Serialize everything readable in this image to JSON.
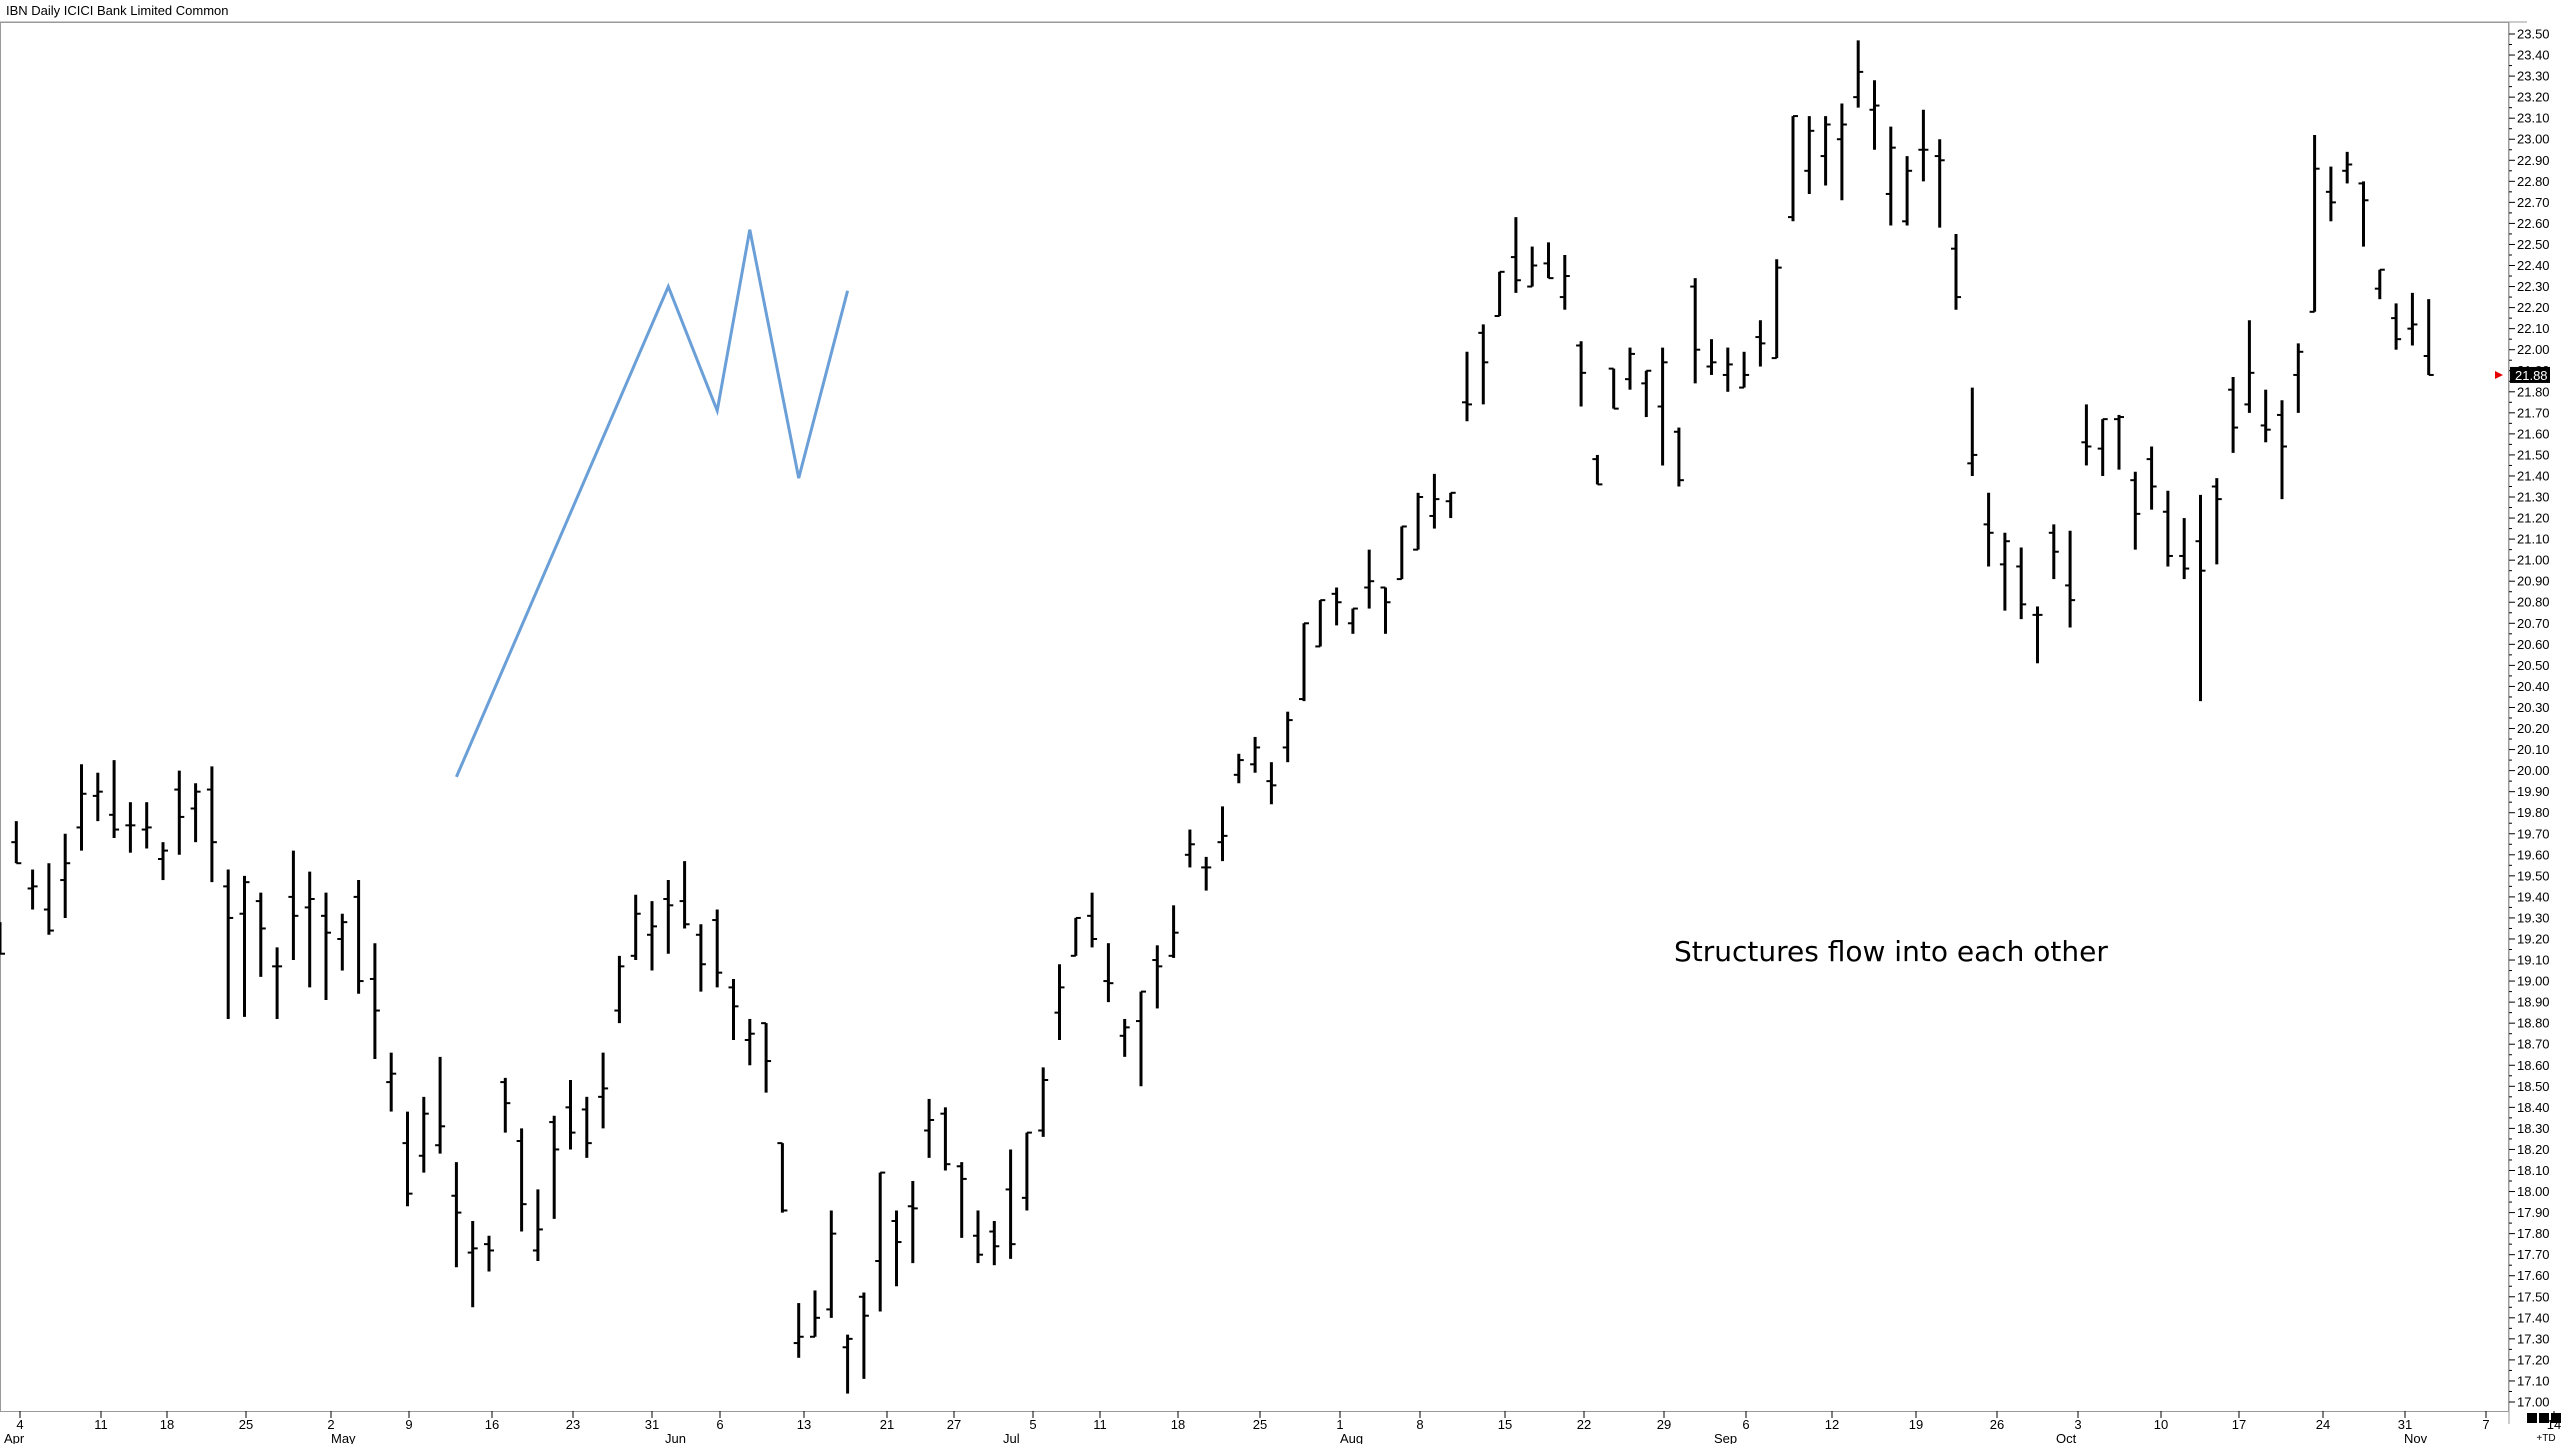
{
  "chart_data": {
    "type": "ohlc",
    "title": "IBN Daily ICICI Bank Limited Common",
    "annotation": "Structures flow into each other",
    "last_price": "21.88",
    "y_axis": {
      "min": 17.0,
      "max": 23.5,
      "step": 0.1,
      "labels": [
        "23.50",
        "23.40",
        "23.30",
        "23.20",
        "23.10",
        "23.00",
        "22.90",
        "22.80",
        "22.70",
        "22.60",
        "22.50",
        "22.40",
        "22.30",
        "22.20",
        "22.10",
        "22.00",
        "21.90",
        "21.80",
        "21.70",
        "21.60",
        "21.50",
        "21.40",
        "21.30",
        "21.20",
        "21.10",
        "21.00",
        "20.90",
        "20.80",
        "20.70",
        "20.60",
        "20.50",
        "20.40",
        "20.30",
        "20.20",
        "20.10",
        "20.00",
        "19.90",
        "19.80",
        "19.70",
        "19.60",
        "19.50",
        "19.40",
        "19.30",
        "19.20",
        "19.10",
        "19.00",
        "18.90",
        "18.80",
        "18.70",
        "18.60",
        "18.50",
        "18.40",
        "18.30",
        "18.20",
        "18.10",
        "18.00",
        "17.90",
        "17.80",
        "17.70",
        "17.60",
        "17.50",
        "17.40",
        "17.30",
        "17.20",
        "17.10",
        "17.00"
      ]
    },
    "x_axis": {
      "day_ticks": [
        "4",
        "11",
        "18",
        "25",
        "2",
        "9",
        "16",
        "23",
        "31",
        "6",
        "13",
        "21",
        "27",
        "5",
        "11",
        "18",
        "25",
        "1",
        "8",
        "15",
        "22",
        "29",
        "6",
        "12",
        "19",
        "26",
        "3",
        "10",
        "17",
        "24",
        "31",
        "7",
        "14"
      ],
      "months": [
        "Apr",
        "May",
        "Jun",
        "Jul",
        "Aug",
        "Sep",
        "Oct",
        "Nov"
      ],
      "corner_label": "+TD"
    },
    "bars": [
      [
        19.28,
        19.28,
        19.13,
        19.13
      ],
      [
        19.66,
        19.76,
        19.56,
        19.56
      ],
      [
        19.44,
        19.53,
        19.34,
        19.45
      ],
      [
        19.34,
        19.56,
        19.22,
        19.24
      ],
      [
        19.48,
        19.7,
        19.3,
        19.56
      ],
      [
        19.73,
        20.03,
        19.62,
        19.89
      ],
      [
        19.88,
        19.99,
        19.76,
        19.9
      ],
      [
        19.79,
        20.05,
        19.68,
        19.72
      ],
      [
        19.74,
        19.85,
        19.61,
        19.74
      ],
      [
        19.72,
        19.85,
        19.63,
        19.73
      ],
      [
        19.58,
        19.66,
        19.48,
        19.62
      ],
      [
        19.91,
        20.0,
        19.6,
        19.78
      ],
      [
        19.82,
        19.94,
        19.66,
        19.9
      ],
      [
        19.91,
        20.02,
        19.47,
        19.66
      ],
      [
        19.45,
        19.53,
        18.82,
        19.3
      ],
      [
        19.32,
        19.5,
        18.83,
        19.47
      ],
      [
        19.38,
        19.42,
        19.02,
        19.25
      ],
      [
        19.07,
        19.16,
        18.82,
        19.07
      ],
      [
        19.4,
        19.62,
        19.1,
        19.31
      ],
      [
        19.35,
        19.52,
        18.97,
        19.39
      ],
      [
        19.31,
        19.42,
        18.91,
        19.23
      ],
      [
        19.2,
        19.32,
        19.05,
        19.28
      ],
      [
        19.4,
        19.48,
        18.94,
        19.0
      ],
      [
        19.01,
        19.18,
        18.63,
        18.86
      ],
      [
        18.52,
        18.66,
        18.38,
        18.56
      ],
      [
        18.23,
        18.38,
        17.93,
        17.99
      ],
      [
        18.17,
        18.45,
        18.09,
        18.37
      ],
      [
        18.22,
        18.64,
        18.18,
        18.31
      ],
      [
        17.98,
        18.14,
        17.64,
        17.9
      ],
      [
        17.71,
        17.86,
        17.45,
        17.73
      ],
      [
        17.75,
        17.79,
        17.62,
        17.72
      ],
      [
        18.52,
        18.54,
        18.28,
        18.42
      ],
      [
        18.24,
        18.3,
        17.81,
        17.94
      ],
      [
        17.72,
        18.01,
        17.67,
        17.82
      ],
      [
        18.33,
        18.36,
        17.87,
        18.2
      ],
      [
        18.4,
        18.53,
        18.2,
        18.28
      ],
      [
        18.39,
        18.45,
        18.16,
        18.23
      ],
      [
        18.45,
        18.66,
        18.3,
        18.49
      ],
      [
        18.86,
        19.12,
        18.8,
        19.07
      ],
      [
        19.12,
        19.41,
        19.1,
        19.32
      ],
      [
        19.22,
        19.38,
        19.05,
        19.26
      ],
      [
        19.39,
        19.48,
        19.13,
        19.36
      ],
      [
        19.38,
        19.57,
        19.25,
        19.27
      ],
      [
        19.22,
        19.27,
        18.95,
        19.08
      ],
      [
        19.29,
        19.34,
        18.97,
        19.04
      ],
      [
        18.97,
        19.01,
        18.72,
        18.88
      ],
      [
        18.72,
        18.82,
        18.6,
        18.75
      ],
      [
        18.8,
        18.75,
        18.47,
        18.62
      ],
      [
        18.23,
        18.22,
        17.9,
        17.91
      ],
      [
        17.28,
        17.47,
        17.21,
        17.31
      ],
      [
        17.31,
        17.53,
        17.33,
        17.4
      ],
      [
        17.44,
        17.91,
        17.4,
        17.8
      ],
      [
        17.26,
        17.32,
        17.04,
        17.3
      ],
      [
        17.5,
        17.52,
        17.11,
        17.41
      ],
      [
        17.67,
        17.83,
        17.43,
        18.09
      ],
      [
        17.86,
        17.91,
        17.55,
        17.76
      ],
      [
        17.93,
        18.05,
        17.66,
        17.92
      ],
      [
        18.29,
        18.44,
        18.16,
        18.34
      ],
      [
        18.37,
        18.4,
        18.1,
        18.13
      ],
      [
        18.12,
        18.14,
        17.78,
        18.06
      ],
      [
        17.79,
        17.91,
        17.66,
        17.7
      ],
      [
        17.81,
        17.86,
        17.65,
        17.74
      ],
      [
        18.01,
        18.2,
        17.68,
        17.75
      ],
      [
        17.97,
        18.25,
        17.91,
        18.28
      ],
      [
        18.29,
        18.59,
        18.26,
        18.53
      ],
      [
        18.85,
        19.08,
        18.72,
        18.97
      ],
      [
        19.12,
        19.29,
        19.14,
        19.3
      ],
      [
        19.31,
        19.42,
        19.16,
        19.2
      ],
      [
        19.0,
        19.18,
        18.9,
        18.99
      ],
      [
        18.74,
        18.82,
        18.64,
        18.78
      ],
      [
        18.81,
        18.95,
        18.5,
        18.95
      ],
      [
        19.1,
        19.17,
        18.87,
        19.07
      ],
      [
        19.12,
        19.36,
        19.11,
        19.23
      ],
      [
        19.6,
        19.72,
        19.54,
        19.65
      ],
      [
        19.54,
        19.59,
        19.43,
        19.54
      ],
      [
        19.66,
        19.83,
        19.57,
        19.69
      ],
      [
        19.98,
        20.08,
        19.94,
        20.05
      ],
      [
        20.03,
        20.16,
        19.99,
        20.11
      ],
      [
        19.95,
        20.04,
        19.84,
        19.93
      ],
      [
        20.11,
        20.28,
        20.04,
        20.24
      ],
      [
        20.34,
        20.7,
        20.33,
        20.7
      ],
      [
        20.59,
        20.8,
        20.62,
        20.81
      ],
      [
        20.84,
        20.87,
        20.69,
        20.8
      ],
      [
        20.7,
        20.77,
        20.65,
        20.77
      ],
      [
        20.87,
        21.05,
        20.77,
        20.9
      ],
      [
        20.87,
        20.84,
        20.65,
        20.8
      ],
      [
        20.91,
        21.07,
        20.99,
        21.16
      ],
      [
        21.05,
        21.32,
        21.17,
        21.3
      ],
      [
        21.21,
        21.41,
        21.15,
        21.29
      ],
      [
        21.28,
        21.3,
        21.2,
        21.32
      ],
      [
        21.75,
        21.99,
        21.66,
        21.74
      ],
      [
        22.08,
        22.12,
        21.74,
        21.94
      ],
      [
        22.16,
        22.36,
        22.17,
        22.37
      ],
      [
        22.44,
        22.63,
        22.27,
        22.33
      ],
      [
        22.3,
        22.49,
        22.31,
        22.4
      ],
      [
        22.41,
        22.51,
        22.38,
        22.34
      ],
      [
        22.25,
        22.45,
        22.19,
        22.35
      ],
      [
        22.02,
        22.04,
        21.73,
        21.89
      ],
      [
        21.48,
        21.5,
        21.36,
        21.36
      ],
      [
        21.91,
        21.91,
        21.73,
        21.72
      ],
      [
        21.86,
        22.01,
        21.81,
        21.98
      ],
      [
        21.84,
        21.83,
        21.68,
        21.9
      ],
      [
        21.73,
        22.01,
        21.45,
        21.94
      ],
      [
        21.61,
        21.63,
        21.35,
        21.38
      ],
      [
        22.3,
        22.34,
        21.84,
        22.0
      ],
      [
        21.92,
        22.05,
        21.88,
        21.94
      ],
      [
        21.88,
        22.01,
        21.8,
        21.93
      ],
      [
        21.82,
        21.99,
        21.84,
        21.88
      ],
      [
        22.06,
        22.14,
        21.92,
        22.03
      ],
      [
        21.96,
        22.43,
        21.96,
        22.39
      ],
      [
        22.63,
        22.94,
        22.61,
        23.11
      ],
      [
        22.85,
        23.11,
        22.74,
        23.04
      ],
      [
        22.92,
        23.11,
        22.78,
        23.07
      ],
      [
        23.0,
        23.17,
        22.71,
        23.07
      ],
      [
        23.2,
        23.47,
        23.15,
        23.32
      ],
      [
        23.14,
        23.28,
        22.95,
        23.16
      ],
      [
        22.74,
        23.06,
        22.59,
        22.96
      ],
      [
        22.61,
        22.92,
        22.59,
        22.85
      ],
      [
        22.95,
        23.14,
        22.8,
        22.95
      ],
      [
        22.92,
        23.0,
        22.58,
        22.9
      ],
      [
        22.48,
        22.55,
        22.19,
        22.25
      ],
      [
        21.46,
        21.82,
        21.4,
        21.5
      ],
      [
        21.17,
        21.32,
        20.97,
        21.13
      ],
      [
        20.98,
        21.13,
        20.76,
        21.09
      ],
      [
        20.97,
        21.06,
        20.72,
        20.79
      ],
      [
        20.74,
        20.78,
        20.51,
        20.74
      ],
      [
        21.13,
        21.17,
        20.91,
        21.04
      ],
      [
        20.88,
        21.14,
        20.68,
        20.81
      ],
      [
        21.56,
        21.74,
        21.45,
        21.54
      ],
      [
        21.53,
        21.6,
        21.4,
        21.67
      ],
      [
        21.67,
        21.69,
        21.43,
        21.68
      ],
      [
        21.38,
        21.42,
        21.05,
        21.22
      ],
      [
        21.48,
        21.54,
        21.24,
        21.35
      ],
      [
        21.23,
        21.33,
        20.97,
        21.02
      ],
      [
        21.02,
        21.2,
        20.91,
        20.96
      ],
      [
        21.09,
        21.31,
        20.33,
        20.95
      ],
      [
        21.35,
        21.39,
        20.98,
        21.29
      ],
      [
        21.81,
        21.87,
        21.51,
        21.63
      ],
      [
        21.74,
        22.14,
        21.7,
        21.89
      ],
      [
        21.64,
        21.81,
        21.56,
        21.62
      ],
      [
        21.69,
        21.76,
        21.29,
        21.54
      ],
      [
        21.88,
        22.03,
        21.7,
        21.99
      ],
      [
        22.18,
        23.02,
        22.18,
        22.86
      ],
      [
        22.75,
        22.87,
        22.61,
        22.7
      ],
      [
        22.85,
        22.94,
        22.79,
        22.88
      ],
      [
        22.79,
        22.8,
        22.49,
        22.71
      ],
      [
        22.29,
        22.37,
        22.24,
        22.38
      ],
      [
        22.15,
        22.22,
        22.0,
        22.05
      ],
      [
        22.1,
        22.27,
        22.02,
        22.12
      ],
      [
        21.97,
        22.24,
        21.89,
        21.88
      ]
    ],
    "overlay_line": [
      {
        "date": "2016-05-11",
        "price": 19.97
      },
      {
        "date": "2016-05-30",
        "price": 22.3
      },
      {
        "date": "2016-06-02",
        "price": 21.71
      },
      {
        "date": "2016-06-06",
        "price": 22.57
      },
      {
        "date": "2016-06-09",
        "price": 21.39
      },
      {
        "date": "2016-06-14",
        "price": 22.28
      }
    ],
    "colors": {
      "bar": "#000000",
      "overlay": "#6a9fd7",
      "price_marker": "#e60000",
      "last_price_box": "#000000"
    },
    "grid": false
  }
}
